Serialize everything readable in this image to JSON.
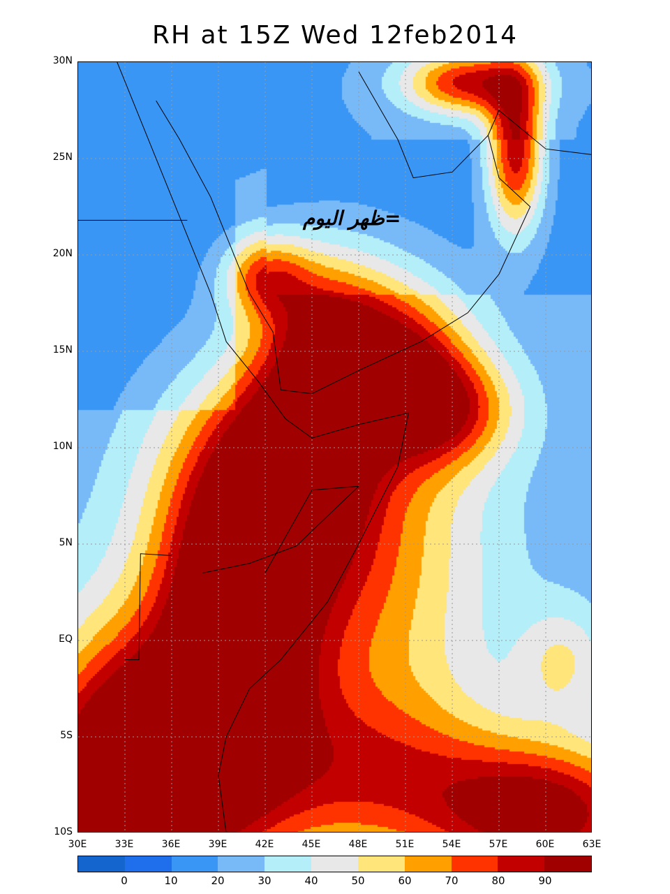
{
  "title": "RH at 15Z Wed 12feb2014",
  "annotation": "=ظهر اليوم",
  "chart_data": {
    "type": "heatmap",
    "variable": "RH",
    "title": "RH at 15Z Wed 12feb2014",
    "lon_range": [
      30,
      63
    ],
    "lat_range": [
      -10,
      30
    ],
    "lat_ticks": [
      "30N",
      "25N",
      "20N",
      "15N",
      "10N",
      "5N",
      "EQ",
      "5S",
      "10S"
    ],
    "lon_ticks": [
      "30E",
      "33E",
      "36E",
      "39E",
      "42E",
      "45E",
      "48E",
      "51E",
      "54E",
      "57E",
      "60E",
      "63E"
    ],
    "grid": true,
    "colorbar": {
      "labels": [
        "0",
        "10",
        "20",
        "30",
        "40",
        "50",
        "60",
        "70",
        "80",
        "90"
      ],
      "colors": [
        "#1565cf",
        "#1f6eeb",
        "#3a96f5",
        "#78b9f8",
        "#b4eef8",
        "#e8e8e8",
        "#ffe57a",
        "#ffa000",
        "#ff3300",
        "#c30000",
        "#a00000"
      ]
    }
  }
}
